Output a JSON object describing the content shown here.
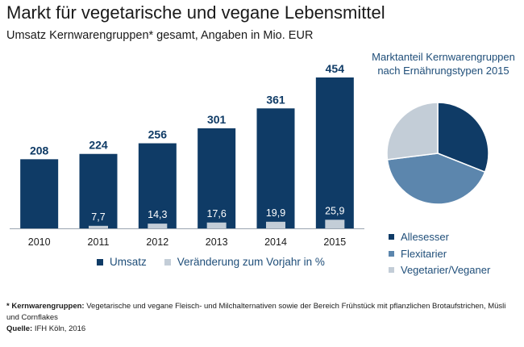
{
  "title": "Markt für vegetarische und vegane Lebensmittel",
  "subtitle": "Umsatz Kernwarengruppen* gesamt, Angaben in Mio. EUR",
  "colors": {
    "umsatz": "#0f3b66",
    "veraenderung": "#c3cdd7",
    "allesesser": "#0f3b66",
    "flexitarier": "#5c86ad",
    "vegetarier": "#c3cdd7",
    "text_blue": "#1f4e79"
  },
  "chart_data": [
    {
      "type": "bar",
      "categories": [
        "2010",
        "2011",
        "2012",
        "2013",
        "2014",
        "2015"
      ],
      "series": [
        {
          "name": "Umsatz",
          "values": [
            208,
            224,
            256,
            301,
            361,
            454
          ]
        },
        {
          "name": "Veränderung zum Vorjahr in %",
          "values": [
            null,
            7.7,
            14.3,
            17.6,
            19.9,
            25.9
          ]
        }
      ],
      "value_labels": [
        [
          "208",
          "224",
          "256",
          "301",
          "361",
          "454"
        ],
        [
          null,
          "7,7",
          "14,3",
          "17,6",
          "19,9",
          "25,9"
        ]
      ],
      "ylim": [
        0,
        454
      ],
      "grid": false,
      "legend": "bottom"
    },
    {
      "type": "pie",
      "title": "Marktanteil Kernwarengruppen nach Ernährungstypen 2015",
      "slices": [
        {
          "name": "Allesesser",
          "value": 31
        },
        {
          "name": "Flexitarier",
          "value": 42
        },
        {
          "name": "Vegetarier/Veganer",
          "value": 27
        }
      ],
      "legend": "bottom"
    }
  ],
  "footnote": {
    "label": "* Kernwarengruppen:",
    "text": " Vegetarische und vegane Fleisch- und Milchalternativen sowie der Bereich Frühstück mit pflanzlichen Brotaufstrichen, Müsli und Cornflakes",
    "source_label": "Quelle:",
    "source_text": " IFH Köln, 2016"
  }
}
